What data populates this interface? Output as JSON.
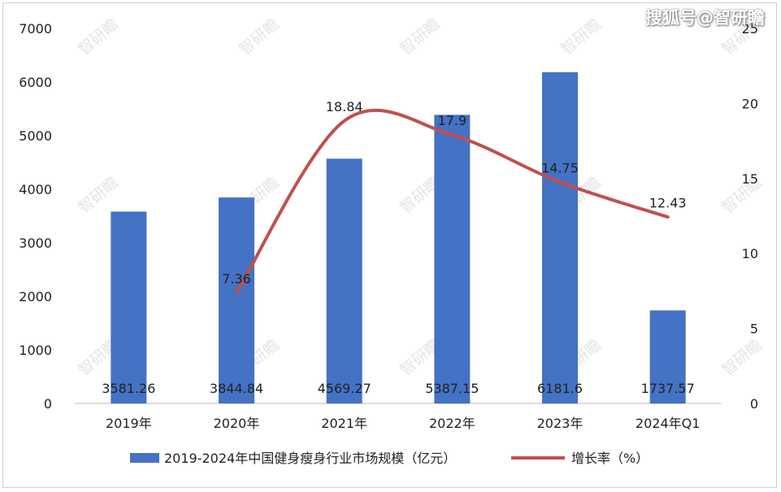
{
  "watermark": "智研瞻",
  "brand": "搜狐号@智研瞻",
  "chart_data": {
    "type": "bar",
    "categories": [
      "2019年",
      "2020年",
      "2021年",
      "2022年",
      "2023年",
      "2024年Q1"
    ],
    "series": [
      {
        "name": "2019-2024年中国健身瘦身行业市场规模（亿元）",
        "type": "bar",
        "axis": "left",
        "color": "#4472C4",
        "values": [
          3581.26,
          3844.84,
          4569.27,
          5387.15,
          6181.6,
          1737.57
        ],
        "labels": [
          "3581.26",
          "3844.84",
          "4569.27",
          "5387.15",
          "6181.6",
          "1737.57"
        ]
      },
      {
        "name": "增长率（%）",
        "type": "line",
        "axis": "right",
        "color": "#C0504D",
        "values": [
          null,
          7.36,
          18.84,
          17.9,
          14.75,
          12.43
        ],
        "labels": [
          "",
          "7.36",
          "18.84",
          "17.9",
          "14.75",
          "12.43"
        ]
      }
    ],
    "ylim_left": [
      0,
      7000
    ],
    "yticks_left": [
      "0",
      "1000",
      "2000",
      "3000",
      "4000",
      "5000",
      "6000",
      "7000"
    ],
    "ylim_right": [
      0,
      25
    ],
    "yticks_right": [
      "0",
      "5",
      "10",
      "15",
      "20",
      "25"
    ],
    "grid": false,
    "legend": "bottom"
  }
}
